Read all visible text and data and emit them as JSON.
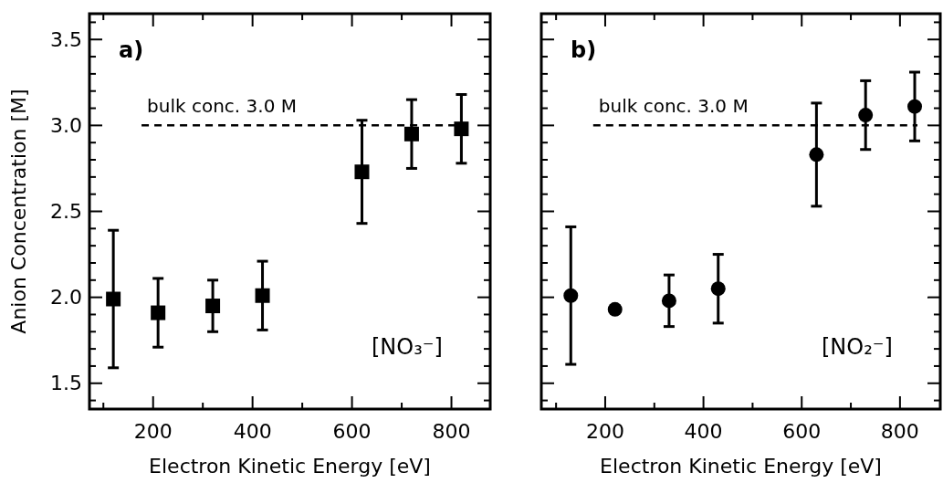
{
  "chart_data": [
    {
      "type": "scatter",
      "xlabel": "Electron Kinetic Energy [eV]",
      "ylabel": "Anion Concentration [M]",
      "marker": "square",
      "series": [
        {
          "color": "#000000",
          "x": [
            120,
            210,
            320,
            420,
            620,
            720,
            820
          ],
          "values": [
            1.99,
            1.91,
            1.95,
            2.01,
            2.73,
            2.95,
            2.98
          ],
          "errors": [
            0.4,
            0.2,
            0.15,
            0.2,
            0.3,
            0.2,
            0.2
          ]
        }
      ],
      "xlim": [
        72,
        878
      ],
      "ylim": [
        1.35,
        3.65
      ],
      "xticks": [
        {
          "value": 100,
          "label": null
        },
        200,
        {
          "value": 300,
          "label": null
        },
        400,
        {
          "value": 500,
          "label": null
        },
        600,
        {
          "value": 700,
          "label": null
        },
        800
      ],
      "yticks": [
        {
          "value": 1.4,
          "label": null
        },
        {
          "value": 1.5,
          "label": "1.5"
        },
        {
          "value": 1.6,
          "label": null
        },
        {
          "value": 1.7,
          "label": null
        },
        {
          "value": 1.8,
          "label": null
        },
        {
          "value": 1.9,
          "label": null
        },
        {
          "value": 2.0,
          "label": "2.0"
        },
        {
          "value": 2.1,
          "label": null
        },
        {
          "value": 2.2,
          "label": null
        },
        {
          "value": 2.3,
          "label": null
        },
        {
          "value": 2.4,
          "label": null
        },
        {
          "value": 2.5,
          "label": "2.5"
        },
        {
          "value": 2.6,
          "label": null
        },
        {
          "value": 2.7,
          "label": null
        },
        {
          "value": 2.8,
          "label": null
        },
        {
          "value": 2.9,
          "label": null
        },
        {
          "value": 3.0,
          "label": "3.0"
        },
        {
          "value": 3.1,
          "label": null
        },
        {
          "value": 3.2,
          "label": null
        },
        {
          "value": 3.3,
          "label": null
        },
        {
          "value": 3.4,
          "label": null
        },
        {
          "value": 3.5,
          "label": "3.5"
        },
        {
          "value": 3.6,
          "label": null
        }
      ],
      "ref_lines": [
        {
          "axis": "y",
          "value": 3.0,
          "label": "bulk conc. 3.0 M",
          "line_style": "dashed",
          "color": "#000000"
        }
      ],
      "annotations": [
        "a)",
        "[NO₃⁻]"
      ],
      "grid": false
    },
    {
      "type": "scatter",
      "xlabel": "Electron Kinetic Energy [eV]",
      "marker": "circle",
      "tick_labels": "x",
      "series": [
        {
          "color": "#000000",
          "x": [
            130,
            220,
            330,
            430,
            630,
            730,
            830
          ],
          "values": [
            2.01,
            1.93,
            1.98,
            2.05,
            2.83,
            3.06,
            3.11
          ],
          "errors": [
            0.4,
            null,
            0.15,
            0.2,
            0.3,
            0.2,
            0.2
          ]
        }
      ],
      "xlim": [
        70,
        882
      ],
      "ylim": [
        1.35,
        3.65
      ],
      "xticks": [
        {
          "value": 100,
          "label": null
        },
        200,
        {
          "value": 300,
          "label": null
        },
        400,
        {
          "value": 500,
          "label": null
        },
        600,
        {
          "value": 700,
          "label": null
        },
        800
      ],
      "yticks": [
        {
          "value": 1.4,
          "label": null
        },
        {
          "value": 1.5,
          "label": null
        },
        {
          "value": 1.6,
          "label": null
        },
        {
          "value": 1.7,
          "label": null
        },
        {
          "value": 1.8,
          "label": null
        },
        {
          "value": 1.9,
          "label": null
        },
        {
          "value": 2.0,
          "label": null
        },
        {
          "value": 2.1,
          "label": null
        },
        {
          "value": 2.2,
          "label": null
        },
        {
          "value": 2.3,
          "label": null
        },
        {
          "value": 2.4,
          "label": null
        },
        {
          "value": 2.5,
          "label": null
        },
        {
          "value": 2.6,
          "label": null
        },
        {
          "value": 2.7,
          "label": null
        },
        {
          "value": 2.8,
          "label": null
        },
        {
          "value": 2.9,
          "label": null
        },
        {
          "value": 3.0,
          "label": null
        },
        {
          "value": 3.1,
          "label": null
        },
        {
          "value": 3.2,
          "label": null
        },
        {
          "value": 3.3,
          "label": null
        },
        {
          "value": 3.4,
          "label": null
        },
        {
          "value": 3.5,
          "label": null
        },
        {
          "value": 3.6,
          "label": null
        }
      ],
      "ref_lines": [
        {
          "axis": "y",
          "value": 3.0,
          "label": "bulk conc. 3.0 M",
          "line_style": "dashed",
          "color": "#000000"
        }
      ],
      "annotations": [
        "b)",
        "[NO₂⁻]"
      ],
      "grid": false
    }
  ]
}
